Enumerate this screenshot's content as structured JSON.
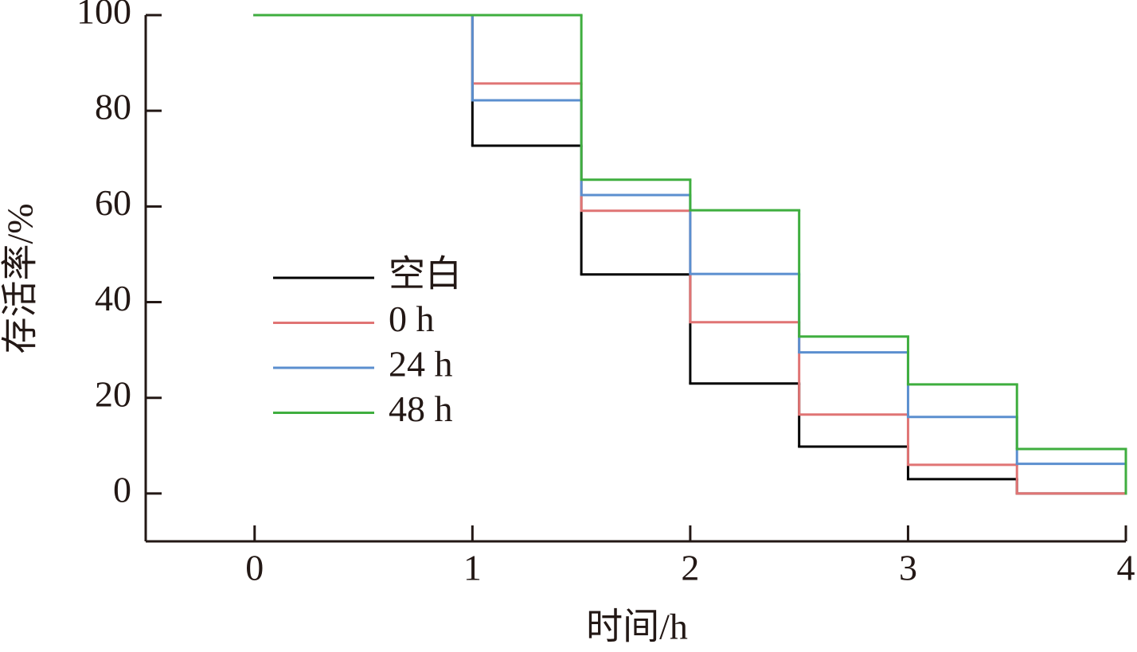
{
  "chart_data": {
    "type": "step",
    "x_label": "时间/h",
    "y_label": "存活率/%",
    "x": [
      0,
      1,
      1.5,
      2,
      2.5,
      3,
      3.5,
      4
    ],
    "series": [
      {
        "name": "空白",
        "color": "#000000",
        "values": [
          100,
          72.7,
          45.8,
          23.0,
          9.8,
          3.0,
          0,
          0
        ]
      },
      {
        "name": "0 h",
        "color": "#e07474",
        "values": [
          100,
          85.7,
          59.1,
          35.8,
          16.5,
          6.0,
          0,
          0
        ]
      },
      {
        "name": "24 h",
        "color": "#5b8fcf",
        "values": [
          100,
          82.2,
          62.4,
          45.9,
          29.5,
          16.0,
          6.2,
          6.2
        ]
      },
      {
        "name": "48 h",
        "color": "#3fae3f",
        "values": [
          100,
          100,
          65.6,
          59.2,
          32.8,
          22.8,
          9.3,
          0
        ]
      }
    ],
    "xlim": [
      -0.5,
      4
    ],
    "xticks": [
      0,
      1,
      2,
      3,
      4
    ],
    "ylim": [
      -10,
      100
    ],
    "yticks": [
      0,
      20,
      40,
      60,
      80,
      100
    ],
    "legend": "left"
  }
}
